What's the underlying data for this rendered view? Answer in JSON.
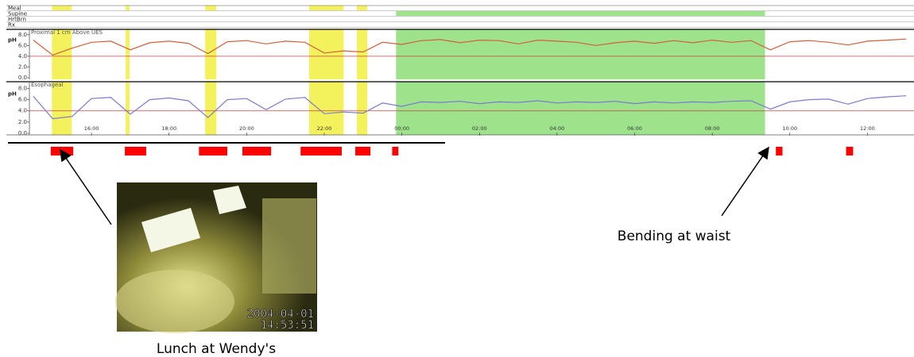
{
  "chart_data": {
    "type": "line",
    "xlim": [
      14.4,
      37.2
    ],
    "xticks": [
      {
        "value": 16,
        "label": "16:00"
      },
      {
        "value": 18,
        "label": "18:00"
      },
      {
        "value": 20,
        "label": "20:00"
      },
      {
        "value": 22,
        "label": "22:00"
      },
      {
        "value": 24,
        "label": "00:00"
      },
      {
        "value": 26,
        "label": "02:00"
      },
      {
        "value": 28,
        "label": "04:00"
      },
      {
        "value": 30,
        "label": "06:00"
      },
      {
        "value": 32,
        "label": "08:00"
      },
      {
        "value": 34,
        "label": "10:00"
      },
      {
        "value": 36,
        "label": "12:00"
      }
    ],
    "channels": [
      {
        "name": "Meal",
        "color": "#f4f25c",
        "periods": [
          [
            14.98,
            15.49
          ],
          [
            16.88,
            16.98
          ],
          [
            18.93,
            19.22
          ],
          [
            21.61,
            22.5
          ],
          [
            22.84,
            23.11
          ]
        ]
      },
      {
        "name": "Supine",
        "color": "#9ee38c",
        "periods": [
          [
            23.85,
            33.36
          ]
        ]
      },
      {
        "name": "HrtBrn"
      },
      {
        "name": "Rx"
      }
    ],
    "reflux_events": {
      "color": "#ff0000",
      "periods": [
        [
          14.95,
          15.53
        ],
        [
          16.86,
          17.41
        ],
        [
          18.77,
          19.5
        ],
        [
          19.89,
          20.63
        ],
        [
          21.39,
          22.45
        ],
        [
          22.8,
          23.19
        ],
        [
          23.75,
          23.91
        ],
        [
          33.64,
          33.81
        ],
        [
          35.45,
          35.63
        ]
      ]
    },
    "x": [
      14.5,
      15.0,
      15.5,
      16.0,
      16.5,
      17.0,
      17.5,
      18.0,
      18.5,
      19.0,
      19.5,
      20.0,
      20.5,
      21.0,
      21.5,
      22.0,
      22.5,
      23.0,
      23.5,
      24.0,
      24.5,
      25.0,
      25.5,
      26.0,
      26.5,
      27.0,
      27.5,
      28.0,
      28.5,
      29.0,
      29.5,
      30.0,
      30.5,
      31.0,
      31.5,
      32.0,
      32.5,
      33.0,
      33.5,
      34.0,
      34.5,
      35.0,
      35.5,
      36.0,
      36.5,
      37.0
    ],
    "panels": [
      {
        "title": "Proximal 1 cm Above UES",
        "ylabel": "pH",
        "ylim": [
          0,
          9
        ],
        "threshold": 4,
        "yticks": [
          {
            "value": 0,
            "label": "0.0"
          },
          {
            "value": 2,
            "label": "2.0"
          },
          {
            "value": 4,
            "label": "4.0"
          },
          {
            "value": 6,
            "label": "6.0"
          },
          {
            "value": 8,
            "label": "8.0"
          }
        ],
        "series": [
          {
            "color": "#d2603a",
            "values": [
              7.0,
              4.2,
              5.5,
              6.6,
              6.8,
              5.2,
              6.5,
              6.8,
              6.4,
              4.5,
              6.7,
              6.9,
              6.3,
              6.8,
              6.6,
              4.6,
              5.0,
              4.8,
              6.6,
              6.2,
              6.9,
              7.1,
              6.5,
              7.0,
              6.9,
              6.3,
              7.0,
              6.8,
              6.6,
              6.0,
              6.5,
              6.8,
              6.4,
              6.9,
              6.5,
              7.0,
              6.6,
              6.9,
              5.2,
              6.7,
              6.9,
              6.6,
              6.1,
              6.8,
              7.0,
              7.2
            ]
          }
        ]
      },
      {
        "title": "Esophageal",
        "ylabel": "pH",
        "ylim": [
          0,
          9.2
        ],
        "threshold": 4,
        "yticks": [
          {
            "value": 0,
            "label": "0.0"
          },
          {
            "value": 2,
            "label": "2.0"
          },
          {
            "value": 4,
            "label": "4.0"
          },
          {
            "value": 6,
            "label": "6.0"
          },
          {
            "value": 8,
            "label": "8.0"
          }
        ],
        "series": [
          {
            "color": "#7a7ad0",
            "values": [
              6.6,
              2.6,
              3.0,
              6.2,
              6.4,
              3.4,
              6.0,
              6.3,
              5.8,
              2.8,
              6.0,
              6.2,
              4.2,
              6.1,
              6.4,
              3.5,
              3.8,
              3.6,
              5.4,
              4.8,
              5.6,
              5.5,
              5.7,
              5.3,
              5.6,
              5.5,
              5.8,
              5.4,
              5.6,
              5.5,
              5.7,
              5.3,
              5.6,
              5.4,
              5.6,
              5.5,
              5.7,
              5.8,
              4.3,
              5.6,
              6.0,
              6.1,
              5.2,
              6.2,
              6.5,
              6.7
            ]
          }
        ]
      }
    ],
    "photo": {
      "timestamp": [
        "2004-04-01",
        "14:53:51"
      ]
    },
    "annotations": [
      {
        "text": "Lunch at Wendy's"
      },
      {
        "text": "Bending at waist"
      }
    ]
  }
}
